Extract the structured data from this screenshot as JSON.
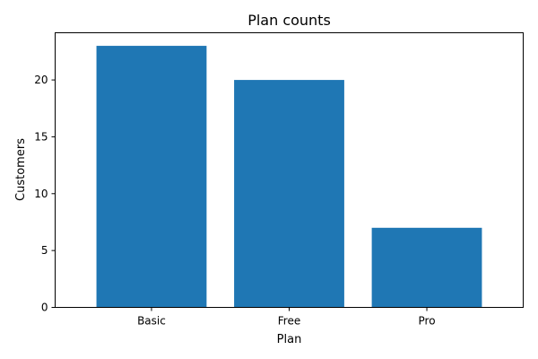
{
  "chart_data": {
    "type": "bar",
    "title": "Plan counts",
    "xlabel": "Plan",
    "ylabel": "Customers",
    "categories": [
      "Basic",
      "Free",
      "Pro"
    ],
    "values": [
      23,
      20,
      7
    ],
    "ylim": [
      0,
      24.15
    ],
    "yticks": [
      0,
      5,
      10,
      15,
      20
    ],
    "grid": false,
    "bar_color": "#1f77b4"
  }
}
